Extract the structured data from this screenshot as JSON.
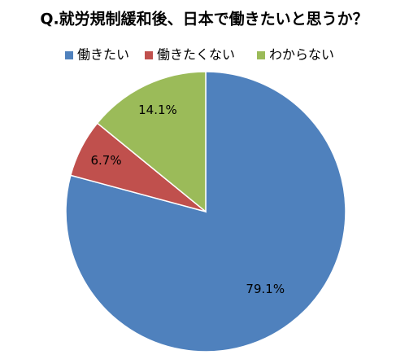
{
  "chart_data": {
    "type": "pie",
    "title": "Q.就労規制緩和後、日本で働きたいと思うか？",
    "categories": [
      "働きたい",
      "働きたくない",
      "わからない"
    ],
    "values": [
      79.1,
      6.7,
      14.1
    ],
    "value_labels": [
      "79.1%",
      "6.7%",
      "14.1%"
    ],
    "colors": [
      "#4f81bd",
      "#c0504d",
      "#9bbb59"
    ],
    "legend": "top"
  }
}
